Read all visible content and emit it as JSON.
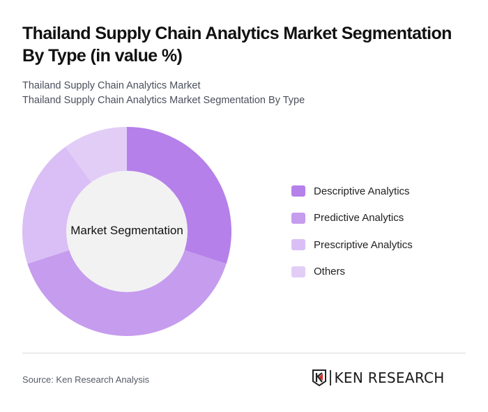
{
  "header": {
    "title": "Thailand Supply Chain Analytics Market Segmentation By Type (in value %)",
    "subtitle_line1": "Thailand Supply Chain Analytics Market",
    "subtitle_line2": "Thailand Supply Chain Analytics Market Segmentation By Type"
  },
  "chart_data": {
    "type": "pie",
    "variant": "donut",
    "title": "Thailand Supply Chain Analytics Market Segmentation By Type (in value %)",
    "center_label": "Market Segmentation",
    "categories": [
      "Descriptive Analytics",
      "Predictive Analytics",
      "Prescriptive Analytics",
      "Others"
    ],
    "values": [
      30,
      40,
      20,
      10
    ],
    "colors": [
      "#b580ea",
      "#c69cee",
      "#d9bff5",
      "#e2cdf7"
    ],
    "legend_position": "right",
    "start_angle_deg": 0,
    "direction": "clockwise"
  },
  "legend": {
    "items": [
      {
        "label": "Descriptive Analytics",
        "color": "#b580ea"
      },
      {
        "label": "Predictive Analytics",
        "color": "#c69cee"
      },
      {
        "label": "Prescriptive Analytics",
        "color": "#d9bff5"
      },
      {
        "label": "Others",
        "color": "#e2cdf7"
      }
    ]
  },
  "footer": {
    "source": "Source: Ken Research Analysis",
    "logo_text": "KEN RESEARCH"
  }
}
